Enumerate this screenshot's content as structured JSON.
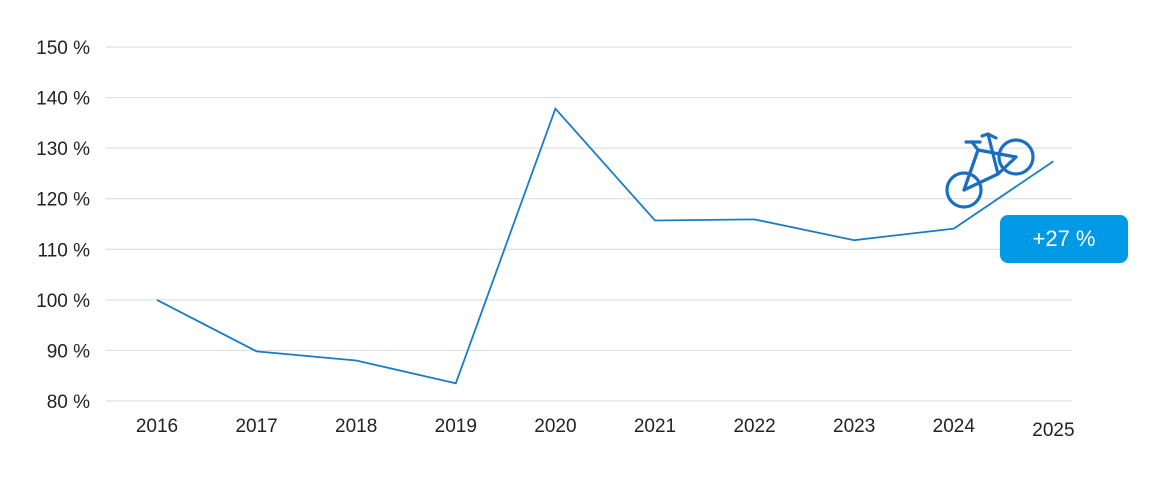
{
  "chart_data": {
    "type": "line",
    "categories": [
      "2016",
      "2017",
      "2018",
      "2019",
      "2020",
      "2021",
      "2022",
      "2023",
      "2024",
      "2025"
    ],
    "values": [
      100,
      89.8,
      88.0,
      83.5,
      137.8,
      115.7,
      115.9,
      111.8,
      114.1,
      127.4
    ],
    "ylim": [
      80,
      150
    ],
    "yticks": [
      80,
      90,
      100,
      110,
      120,
      130,
      140,
      150
    ],
    "ytick_labels": [
      "80 %",
      "90 %",
      "100 %",
      "110 %",
      "120 %",
      "130 %",
      "140 %",
      "150 %"
    ],
    "grid": true,
    "annotation": {
      "text": "+27 %",
      "icon": "bicycle-icon"
    },
    "colors": {
      "line": "#1a7dc4",
      "badge": "#0099e6",
      "icon": "#1a6fc0",
      "grid": "#d9d9d9"
    }
  }
}
